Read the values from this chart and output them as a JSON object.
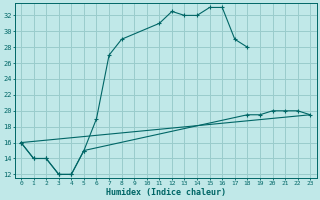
{
  "xlabel": "Humidex (Indice chaleur)",
  "bg_color": "#c0e8e8",
  "grid_color": "#99cccc",
  "line_color": "#006666",
  "xlim": [
    -0.5,
    23.5
  ],
  "ylim": [
    11.5,
    33.5
  ],
  "xticks": [
    0,
    1,
    2,
    3,
    4,
    5,
    6,
    7,
    8,
    9,
    10,
    11,
    12,
    13,
    14,
    15,
    16,
    17,
    18,
    19,
    20,
    21,
    22,
    23
  ],
  "yticks": [
    12,
    14,
    16,
    18,
    20,
    22,
    24,
    26,
    28,
    30,
    32
  ],
  "line1_x": [
    0,
    1,
    2,
    3,
    4,
    5,
    6,
    7,
    8,
    11,
    12,
    13,
    14,
    15,
    16,
    17,
    18
  ],
  "line1_y": [
    16,
    14,
    14,
    12,
    12,
    15,
    19,
    27,
    29,
    31,
    32.5,
    32,
    32,
    33,
    33,
    29,
    28
  ],
  "line2_x": [
    0,
    1,
    2,
    3,
    4,
    5,
    18,
    19,
    20,
    21,
    22,
    23
  ],
  "line2_y": [
    16,
    14,
    14,
    12,
    12,
    15,
    19.5,
    19.5,
    20,
    20,
    20,
    19.5
  ],
  "line3_x": [
    0,
    23
  ],
  "line3_y": [
    16,
    19.5
  ]
}
